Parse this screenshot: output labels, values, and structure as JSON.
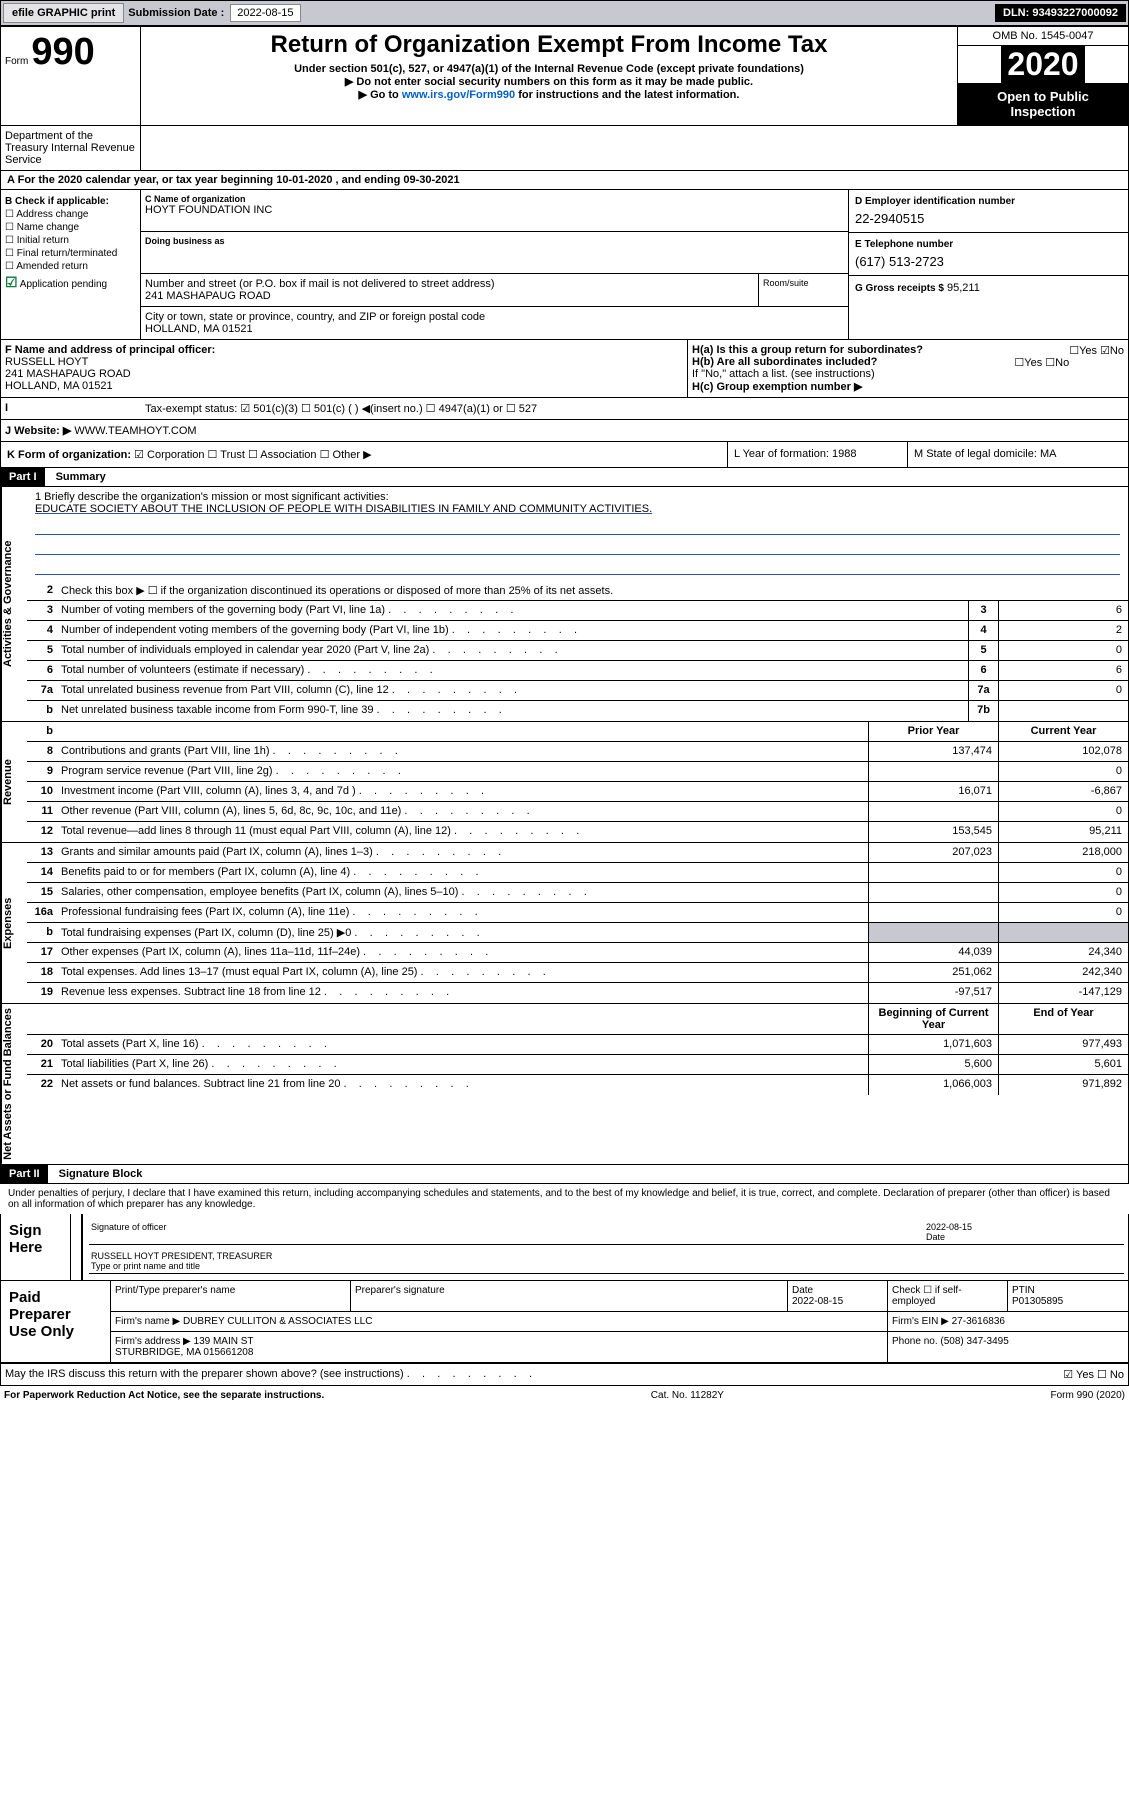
{
  "topbar": {
    "efile_btn": "efile GRAPHIC print",
    "sub_date_label": "Submission Date :",
    "sub_date": "2022-08-15",
    "dln": "DLN: 93493227000092"
  },
  "header": {
    "form_label": "Form",
    "form_num": "990",
    "dept": "Department of the Treasury\nInternal Revenue Service",
    "title": "Return of Organization Exempt From Income Tax",
    "subtitle": "Under section 501(c), 527, or 4947(a)(1) of the Internal Revenue Code (except private foundations)",
    "arrow1": "▶ Do not enter social security numbers on this form as it may be made public.",
    "arrow2": "▶ Go to www.irs.gov/Form990 for instructions and the latest information.",
    "link": "www.irs.gov/Form990",
    "omb": "OMB No. 1545-0047",
    "year": "2020",
    "open": "Open to Public Inspection"
  },
  "taxyear": "For the 2020 calendar year, or tax year beginning 10-01-2020   , and ending 09-30-2021",
  "checkB": {
    "heading": "B Check if applicable:",
    "items": [
      "☐ Address change",
      "☐ Name change",
      "☐ Initial return",
      "☐ Final return/terminated",
      "☐ Amended return",
      "Application pending"
    ]
  },
  "nameC": {
    "lbl": "C Name of organization",
    "name": "HOYT FOUNDATION INC",
    "dba_lbl": "Doing business as",
    "addr_lbl": "Number and street (or P.O. box if mail is not delivered to street address)",
    "addr": "241 MASHAPAUG ROAD",
    "room_lbl": "Room/suite",
    "city_lbl": "City or town, state or province, country, and ZIP or foreign postal code",
    "city": "HOLLAND, MA  01521"
  },
  "rightcol": {
    "ein_lbl": "D Employer identification number",
    "ein": "22-2940515",
    "phone_lbl": "E Telephone number",
    "phone": "(617) 513-2723",
    "gross_lbl": "G Gross receipts $",
    "gross": "95,211"
  },
  "rowF": {
    "lbl": "F  Name and address of principal officer:",
    "name": "RUSSELL HOYT",
    "addr1": "241 MASHAPAUG ROAD",
    "addr2": "HOLLAND, MA  01521"
  },
  "rowH": {
    "ha": "H(a)  Is this a group return for subordinates?",
    "ha_ans": "☐Yes ☑No",
    "hb": "H(b)  Are all subordinates included?",
    "hb_ans": "☐Yes ☐No",
    "hb_note": "If \"No,\" attach a list. (see instructions)",
    "hc": "H(c)  Group exemption number ▶"
  },
  "rowI": {
    "lbl": "Tax-exempt status:",
    "opts": "☑ 501(c)(3)    ☐ 501(c) (  ) ◀(insert no.)    ☐ 4947(a)(1) or  ☐ 527"
  },
  "rowJ": {
    "lbl": "J   Website: ▶",
    "val": "WWW.TEAMHOYT.COM"
  },
  "rowK": {
    "lbl": "K Form of organization:",
    "opts": "☑ Corporation  ☐ Trust  ☐ Association  ☐ Other ▶",
    "L": "L Year of formation: 1988",
    "M": "M State of legal domicile: MA"
  },
  "part1": {
    "hdr": "Part I",
    "title": "Summary"
  },
  "mission": {
    "q": "1  Briefly describe the organization's mission or most significant activities:",
    "text": "EDUCATE SOCIETY ABOUT THE INCLUSION OF PEOPLE WITH DISABILITIES IN FAMILY AND COMMUNITY ACTIVITIES."
  },
  "gov": {
    "line2": "Check this box ▶ ☐  if the organization discontinued its operations or disposed of more than 25% of its net assets.",
    "rows": [
      {
        "n": "3",
        "d": "Number of voting members of the governing body (Part VI, line 1a)",
        "box": "3",
        "v": "6"
      },
      {
        "n": "4",
        "d": "Number of independent voting members of the governing body (Part VI, line 1b)",
        "box": "4",
        "v": "2"
      },
      {
        "n": "5",
        "d": "Total number of individuals employed in calendar year 2020 (Part V, line 2a)",
        "box": "5",
        "v": "0"
      },
      {
        "n": "6",
        "d": "Total number of volunteers (estimate if necessary)",
        "box": "6",
        "v": "6"
      },
      {
        "n": "7a",
        "d": "Total unrelated business revenue from Part VIII, column (C), line 12",
        "box": "7a",
        "v": "0"
      },
      {
        "n": "b",
        "d": "Net unrelated business taxable income from Form 990-T, line 39",
        "box": "7b",
        "v": ""
      }
    ]
  },
  "colheads": {
    "prior": "Prior Year",
    "current": "Current Year",
    "beg": "Beginning of Current Year",
    "end": "End of Year"
  },
  "revenue": [
    {
      "n": "8",
      "d": "Contributions and grants (Part VIII, line 1h)",
      "p": "137,474",
      "c": "102,078"
    },
    {
      "n": "9",
      "d": "Program service revenue (Part VIII, line 2g)",
      "p": "",
      "c": "0"
    },
    {
      "n": "10",
      "d": "Investment income (Part VIII, column (A), lines 3, 4, and 7d )",
      "p": "16,071",
      "c": "-6,867"
    },
    {
      "n": "11",
      "d": "Other revenue (Part VIII, column (A), lines 5, 6d, 8c, 9c, 10c, and 11e)",
      "p": "",
      "c": "0"
    },
    {
      "n": "12",
      "d": "Total revenue—add lines 8 through 11 (must equal Part VIII, column (A), line 12)",
      "p": "153,545",
      "c": "95,211"
    }
  ],
  "expenses": [
    {
      "n": "13",
      "d": "Grants and similar amounts paid (Part IX, column (A), lines 1–3)",
      "p": "207,023",
      "c": "218,000"
    },
    {
      "n": "14",
      "d": "Benefits paid to or for members (Part IX, column (A), line 4)",
      "p": "",
      "c": "0"
    },
    {
      "n": "15",
      "d": "Salaries, other compensation, employee benefits (Part IX, column (A), lines 5–10)",
      "p": "",
      "c": "0"
    },
    {
      "n": "16a",
      "d": "Professional fundraising fees (Part IX, column (A), line 11e)",
      "p": "",
      "c": "0"
    },
    {
      "n": "b",
      "d": "Total fundraising expenses (Part IX, column (D), line 25) ▶0",
      "p": "",
      "c": "",
      "shaded": true
    },
    {
      "n": "17",
      "d": "Other expenses (Part IX, column (A), lines 11a–11d, 11f–24e)",
      "p": "44,039",
      "c": "24,340"
    },
    {
      "n": "18",
      "d": "Total expenses. Add lines 13–17 (must equal Part IX, column (A), line 25)",
      "p": "251,062",
      "c": "242,340"
    },
    {
      "n": "19",
      "d": "Revenue less expenses. Subtract line 18 from line 12",
      "p": "-97,517",
      "c": "-147,129"
    }
  ],
  "netassets": [
    {
      "n": "20",
      "d": "Total assets (Part X, line 16)",
      "p": "1,071,603",
      "c": "977,493"
    },
    {
      "n": "21",
      "d": "Total liabilities (Part X, line 26)",
      "p": "5,600",
      "c": "5,601"
    },
    {
      "n": "22",
      "d": "Net assets or fund balances. Subtract line 21 from line 20",
      "p": "1,066,003",
      "c": "971,892"
    }
  ],
  "vtabs": {
    "gov": "Activities & Governance",
    "rev": "Revenue",
    "exp": "Expenses",
    "net": "Net Assets or Fund Balances"
  },
  "part2": {
    "hdr": "Part II",
    "title": "Signature Block"
  },
  "penalty": "Under penalties of perjury, I declare that I have examined this return, including accompanying schedules and statements, and to the best of my knowledge and belief, it is true, correct, and complete. Declaration of preparer (other than officer) is based on all information of which preparer has any knowledge.",
  "sign": {
    "label": "Sign Here",
    "sig_of": "Signature of officer",
    "date": "2022-08-15",
    "date_lbl": "Date",
    "name": "RUSSELL HOYT PRESIDENT, TREASURER",
    "type_lbl": "Type or print name and title"
  },
  "prep": {
    "label": "Paid Preparer Use Only",
    "h_print": "Print/Type preparer's name",
    "h_sig": "Preparer's signature",
    "h_date": "Date",
    "date": "2022-08-15",
    "h_check": "Check ☐ if self-employed",
    "h_ptin": "PTIN",
    "ptin": "P01305895",
    "firm_lbl": "Firm's name    ▶",
    "firm": "DUBREY CULLITON & ASSOCIATES LLC",
    "ein_lbl": "Firm's EIN ▶",
    "ein": "27-3616836",
    "addr_lbl": "Firm's address ▶",
    "addr1": "139 MAIN ST",
    "addr2": "STURBRIDGE, MA  015661208",
    "phone_lbl": "Phone no.",
    "phone": "(508) 347-3495",
    "discuss": "May the IRS discuss this return with the preparer shown above? (see instructions)",
    "discuss_ans": "☑ Yes  ☐ No"
  },
  "footer": {
    "left": "For Paperwork Reduction Act Notice, see the separate instructions.",
    "mid": "Cat. No. 11282Y",
    "right": "Form 990 (2020)"
  }
}
